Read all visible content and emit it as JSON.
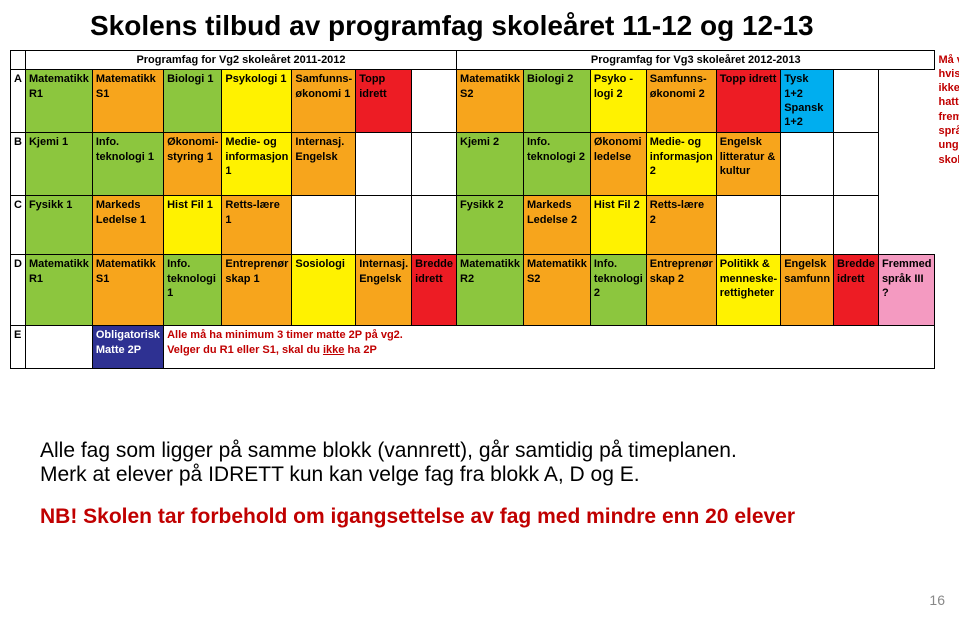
{
  "title": "Skolens tilbud av programfag skoleåret 11-12 og 12-13",
  "headers": {
    "left": "Programfag for Vg2 skoleåret 2011-2012",
    "right": "Programfag for Vg3 skoleåret 2012-2013"
  },
  "colors": {
    "green": "#8cc63e",
    "orange": "#f7a51c",
    "yellow": "#fff200",
    "red": "#ed1c24",
    "lightgreen": "#c4df9b",
    "darkblue": "#2e3192",
    "blue": "#2e3192",
    "cyan": "#00aeef",
    "pink": "#f49ac1",
    "white": "#ffffff"
  },
  "rows": {
    "A": {
      "left": [
        {
          "t": "Matematikk R1",
          "c": "green"
        },
        {
          "t": "Matematikk S1",
          "c": "orange"
        },
        {
          "t": "Biologi 1",
          "c": "green"
        },
        {
          "t": "Psykologi 1",
          "c": "yellow"
        },
        {
          "t": "Samfunns-økonomi 1",
          "c": "orange"
        },
        {
          "t": "Topp idrett",
          "c": "red"
        }
      ],
      "right": [
        {
          "t": "Matematikk S2",
          "c": "orange"
        },
        {
          "t": "Biologi 2",
          "c": "green"
        },
        {
          "t": "Psyko -logi 2",
          "c": "yellow"
        },
        {
          "t": "Samfunns-økonomi 2",
          "c": "orange"
        },
        {
          "t": "Topp idrett",
          "c": "red"
        },
        {
          "t": "Tysk 1+2 Spansk 1+2",
          "c": "cyan"
        }
      ]
    },
    "B": {
      "left": [
        {
          "t": "Kjemi 1",
          "c": "green"
        },
        {
          "t": "Info. teknologi 1",
          "c": "green"
        },
        {
          "t": "Økonomi-styring 1",
          "c": "orange"
        },
        {
          "t": "Medie- og informasjon 1",
          "c": "yellow"
        },
        {
          "t": "Internasj. Engelsk",
          "c": "orange"
        }
      ],
      "right": [
        {
          "t": "Kjemi 2",
          "c": "green"
        },
        {
          "t": "Info. teknologi 2",
          "c": "green"
        },
        {
          "t": "Økonomi ledelse",
          "c": "orange"
        },
        {
          "t": "Medie- og informasjon 2",
          "c": "yellow"
        },
        {
          "t": "Engelsk litteratur & kultur",
          "c": "orange"
        }
      ]
    },
    "C": {
      "left": [
        {
          "t": "Fysikk 1",
          "c": "green"
        },
        {
          "t": "Markeds Ledelse 1",
          "c": "orange"
        },
        {
          "t": "Hist Fil 1",
          "c": "yellow"
        },
        {
          "t": "Retts-lære 1",
          "c": "orange"
        }
      ],
      "right": [
        {
          "t": "Fysikk 2",
          "c": "green"
        },
        {
          "t": "Markeds Ledelse 2",
          "c": "orange"
        },
        {
          "t": "Hist Fil 2",
          "c": "yellow"
        },
        {
          "t": "Retts-lære 2",
          "c": "orange"
        }
      ]
    },
    "D": {
      "left": [
        {
          "t": "Matematikk R1",
          "c": "green"
        },
        {
          "t": "Matematikk S1",
          "c": "orange"
        },
        {
          "t": "Info. teknologi 1",
          "c": "green"
        },
        {
          "t": "Entreprenør skap 1",
          "c": "orange"
        },
        {
          "t": "Sosiologi",
          "c": "yellow"
        },
        {
          "t": "Internasj. Engelsk",
          "c": "orange"
        },
        {
          "t": "Bredde idrett",
          "c": "red"
        }
      ],
      "right": [
        {
          "t": "Matematikk R2",
          "c": "green"
        },
        {
          "t": "Matematikk S2",
          "c": "orange"
        },
        {
          "t": "Info. teknologi 2",
          "c": "green"
        },
        {
          "t": "Entreprenør skap 2",
          "c": "orange"
        },
        {
          "t": "Politikk & menneske-rettigheter",
          "c": "yellow"
        },
        {
          "t": "Engelsk samfunn",
          "c": "orange"
        },
        {
          "t": "Bredde idrett",
          "c": "red"
        },
        {
          "t": "Fremmed språk III  ?",
          "c": "pink"
        }
      ]
    },
    "E": {
      "cell": {
        "t": "Obligatorisk Matte 2P",
        "c": "blue",
        "fg": "#ffffff"
      },
      "note": "Alle må ha minimum 3 timer matte 2P på vg2.\nVelger du R1 eller S1, skal du ikke ha 2P"
    }
  },
  "sideNote": "Må velges hvis du ikke har hatt fremmed-språk på ungdoms-skolen",
  "footer": {
    "line1": "Alle fag som ligger på samme blokk (vannrett), går samtidig på timeplanen.",
    "line2": "Merk at elever på IDRETT kun kan velge fag fra blokk A, D og E.",
    "nb": "NB! Skolen tar forbehold om igangsettelse av fag med mindre enn 20 elever"
  },
  "pageNum": "16",
  "rowHeights": {
    "A": 58,
    "B": 58,
    "C": 54,
    "D": 66,
    "E": 38
  }
}
